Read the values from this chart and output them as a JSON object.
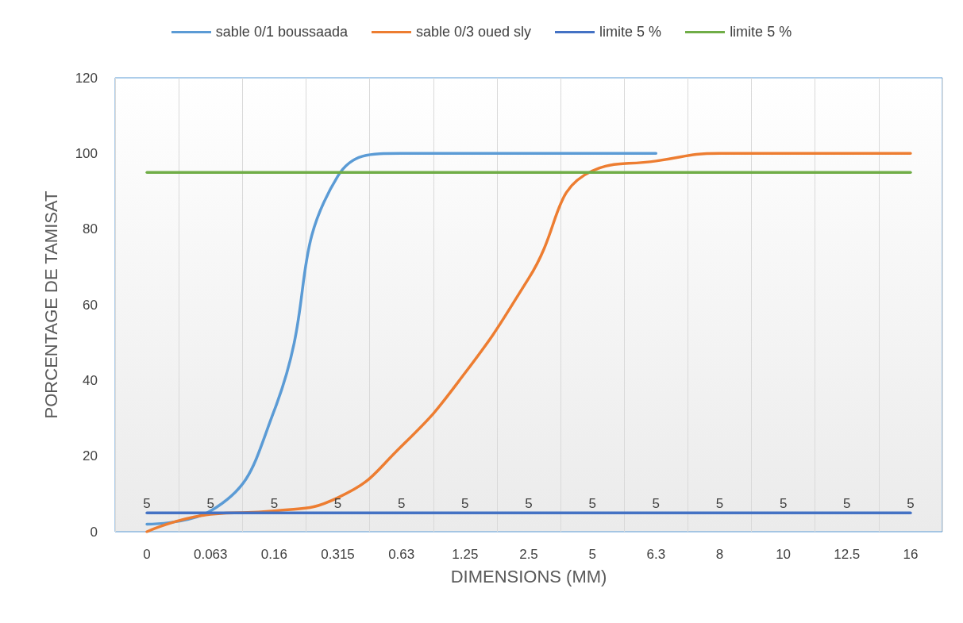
{
  "chart_data": {
    "type": "line",
    "xlabel": "DIMENSIONS (MM)",
    "ylabel": "PORCENTAGE DE TAMISAT",
    "categories": [
      "0",
      "0.063",
      "0.16",
      "0.315",
      "0.63",
      "1.25",
      "2.5",
      "5",
      "6.3",
      "8",
      "10",
      "12.5",
      "16"
    ],
    "series": [
      {
        "name": "sable 0/1 boussaada",
        "color": "#5b9bd5",
        "values": [
          2,
          5.5,
          32,
          94,
          100,
          100,
          100,
          100,
          100,
          null,
          null,
          null,
          null
        ]
      },
      {
        "name": "sable 0/3 oued sly",
        "color": "#ed7d31",
        "values": [
          0,
          4.6,
          5.5,
          9,
          22.6,
          42,
          67,
          95.4,
          98,
          100,
          100,
          100,
          100
        ]
      },
      {
        "name": "limite 5 %",
        "color": "#4472c4",
        "values": [
          5,
          5,
          5,
          5,
          5,
          5,
          5,
          5,
          5,
          5,
          5,
          5,
          5
        ],
        "value_labels": [
          "5",
          "5",
          "5",
          "5",
          "5",
          "5",
          "5",
          "5",
          "5",
          "5",
          "5",
          "5",
          "5"
        ]
      },
      {
        "name": "limite 5 %",
        "color": "#70ad47",
        "values": [
          95,
          95,
          95,
          95,
          95,
          95,
          95,
          95,
          95,
          95,
          95,
          95,
          95
        ]
      }
    ],
    "ylim": [
      0,
      120
    ],
    "yticks": [
      0,
      20,
      40,
      60,
      80,
      100,
      120
    ],
    "grid": "x",
    "legend": "top",
    "marker": "none",
    "line_style": "solid"
  }
}
